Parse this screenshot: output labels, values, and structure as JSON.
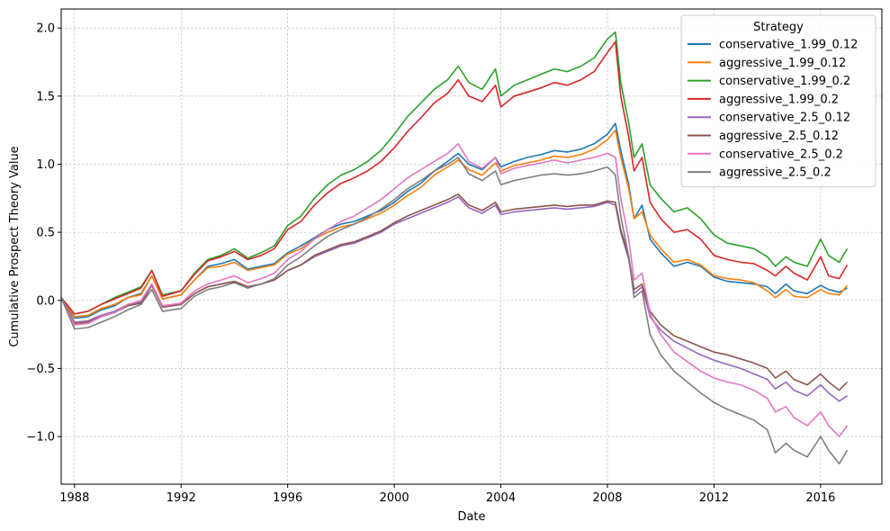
{
  "chart_data": {
    "type": "line",
    "xlabel": "Date",
    "ylabel": "Cumulative Prospect Theory Value",
    "xlim": [
      1987.5,
      2018.3
    ],
    "ylim": [
      -1.35,
      2.14
    ],
    "x_ticks": [
      1988,
      1992,
      1996,
      2000,
      2004,
      2008,
      2012,
      2016
    ],
    "y_ticks": [
      -1.0,
      -0.5,
      0.0,
      0.5,
      1.0,
      1.5,
      2.0
    ],
    "y_tick_labels": [
      "−1.0",
      "−0.5",
      "0.0",
      "0.5",
      "1.0",
      "1.5",
      "2.0"
    ],
    "grid": true,
    "legend": {
      "title": "Strategy",
      "placement": "top-right"
    },
    "x": [
      1987.5,
      1988.0,
      1988.5,
      1989.0,
      1989.5,
      1990.0,
      1990.5,
      1990.9,
      1991.3,
      1992.0,
      1992.5,
      1993.0,
      1993.5,
      1994.0,
      1994.5,
      1995.0,
      1995.5,
      1996.0,
      1996.5,
      1997.0,
      1997.5,
      1998.0,
      1998.5,
      1999.0,
      1999.5,
      2000.0,
      2000.5,
      2001.0,
      2001.5,
      2002.0,
      2002.4,
      2002.8,
      2003.3,
      2003.8,
      2004.0,
      2004.5,
      2005.0,
      2005.5,
      2006.0,
      2006.5,
      2007.0,
      2007.5,
      2008.0,
      2008.3,
      2008.5,
      2008.8,
      2009.0,
      2009.3,
      2009.6,
      2010.0,
      2010.5,
      2011.0,
      2011.5,
      2012.0,
      2012.5,
      2013.0,
      2013.5,
      2014.0,
      2014.3,
      2014.7,
      2015.0,
      2015.5,
      2016.0,
      2016.3,
      2016.7,
      2017.0
    ],
    "series": [
      {
        "name": "conservative_1.99_0.12",
        "color": "#1f77b4",
        "values": [
          0.02,
          -0.13,
          -0.12,
          -0.07,
          -0.04,
          0.02,
          0.05,
          0.18,
          0.01,
          0.04,
          0.15,
          0.25,
          0.27,
          0.3,
          0.23,
          0.25,
          0.27,
          0.35,
          0.4,
          0.46,
          0.52,
          0.56,
          0.58,
          0.62,
          0.66,
          0.72,
          0.8,
          0.86,
          0.95,
          1.02,
          1.08,
          1.0,
          0.96,
          1.05,
          0.98,
          1.02,
          1.05,
          1.07,
          1.1,
          1.09,
          1.11,
          1.15,
          1.22,
          1.3,
          1.1,
          0.85,
          0.6,
          0.7,
          0.45,
          0.35,
          0.25,
          0.28,
          0.25,
          0.17,
          0.14,
          0.13,
          0.12,
          0.1,
          0.05,
          0.12,
          0.07,
          0.05,
          0.11,
          0.08,
          0.06,
          0.09
        ]
      },
      {
        "name": "aggressive_1.99_0.12",
        "color": "#ff7f0e",
        "values": [
          0.02,
          -0.12,
          -0.11,
          -0.06,
          -0.03,
          0.02,
          0.04,
          0.18,
          0.01,
          0.04,
          0.15,
          0.24,
          0.25,
          0.28,
          0.22,
          0.24,
          0.26,
          0.34,
          0.38,
          0.45,
          0.5,
          0.54,
          0.56,
          0.6,
          0.64,
          0.7,
          0.77,
          0.83,
          0.92,
          0.98,
          1.03,
          0.96,
          0.92,
          1.01,
          0.95,
          0.99,
          1.01,
          1.03,
          1.06,
          1.05,
          1.07,
          1.11,
          1.18,
          1.25,
          1.05,
          0.82,
          0.6,
          0.65,
          0.48,
          0.38,
          0.28,
          0.3,
          0.26,
          0.18,
          0.16,
          0.15,
          0.13,
          0.07,
          0.02,
          0.08,
          0.03,
          0.02,
          0.08,
          0.05,
          0.04,
          0.11
        ]
      },
      {
        "name": "conservative_1.99_0.2",
        "color": "#2ca02c",
        "values": [
          0.02,
          -0.1,
          -0.08,
          -0.03,
          0.02,
          0.06,
          0.1,
          0.22,
          0.04,
          0.07,
          0.2,
          0.3,
          0.33,
          0.38,
          0.31,
          0.35,
          0.4,
          0.55,
          0.62,
          0.75,
          0.85,
          0.92,
          0.96,
          1.02,
          1.1,
          1.22,
          1.35,
          1.45,
          1.55,
          1.62,
          1.72,
          1.6,
          1.55,
          1.7,
          1.5,
          1.58,
          1.62,
          1.66,
          1.7,
          1.68,
          1.72,
          1.78,
          1.92,
          1.97,
          1.6,
          1.3,
          1.05,
          1.15,
          0.85,
          0.75,
          0.65,
          0.68,
          0.6,
          0.48,
          0.42,
          0.4,
          0.38,
          0.32,
          0.25,
          0.32,
          0.28,
          0.25,
          0.45,
          0.33,
          0.28,
          0.38
        ]
      },
      {
        "name": "aggressive_1.99_0.2",
        "color": "#d62728",
        "values": [
          0.02,
          -0.1,
          -0.08,
          -0.03,
          0.01,
          0.05,
          0.09,
          0.22,
          0.03,
          0.07,
          0.19,
          0.29,
          0.32,
          0.36,
          0.3,
          0.33,
          0.38,
          0.52,
          0.58,
          0.7,
          0.79,
          0.86,
          0.9,
          0.95,
          1.02,
          1.12,
          1.24,
          1.34,
          1.45,
          1.52,
          1.62,
          1.5,
          1.46,
          1.58,
          1.42,
          1.5,
          1.53,
          1.56,
          1.6,
          1.58,
          1.62,
          1.68,
          1.82,
          1.9,
          1.5,
          1.2,
          0.95,
          1.05,
          0.72,
          0.6,
          0.5,
          0.52,
          0.45,
          0.33,
          0.3,
          0.28,
          0.27,
          0.22,
          0.18,
          0.25,
          0.2,
          0.15,
          0.32,
          0.18,
          0.16,
          0.26
        ]
      },
      {
        "name": "conservative_2.5_0.12",
        "color": "#9467bd",
        "values": [
          0.02,
          -0.16,
          -0.15,
          -0.11,
          -0.08,
          -0.03,
          -0.01,
          0.12,
          -0.04,
          -0.03,
          0.05,
          0.1,
          0.12,
          0.14,
          0.1,
          0.12,
          0.15,
          0.22,
          0.26,
          0.32,
          0.36,
          0.4,
          0.42,
          0.46,
          0.5,
          0.56,
          0.6,
          0.64,
          0.68,
          0.72,
          0.76,
          0.68,
          0.64,
          0.7,
          0.63,
          0.65,
          0.66,
          0.67,
          0.68,
          0.67,
          0.68,
          0.69,
          0.72,
          0.7,
          0.5,
          0.3,
          0.05,
          0.1,
          -0.12,
          -0.22,
          -0.3,
          -0.35,
          -0.4,
          -0.44,
          -0.47,
          -0.5,
          -0.54,
          -0.58,
          -0.65,
          -0.6,
          -0.66,
          -0.7,
          -0.62,
          -0.68,
          -0.74,
          -0.7
        ]
      },
      {
        "name": "aggressive_2.5_0.12",
        "color": "#8c564b",
        "values": [
          0.02,
          -0.17,
          -0.16,
          -0.12,
          -0.09,
          -0.04,
          -0.02,
          0.11,
          -0.05,
          -0.03,
          0.05,
          0.1,
          0.12,
          0.14,
          0.1,
          0.12,
          0.15,
          0.22,
          0.26,
          0.33,
          0.37,
          0.41,
          0.43,
          0.47,
          0.51,
          0.57,
          0.62,
          0.66,
          0.7,
          0.74,
          0.78,
          0.7,
          0.66,
          0.72,
          0.65,
          0.67,
          0.68,
          0.69,
          0.7,
          0.69,
          0.7,
          0.7,
          0.73,
          0.72,
          0.52,
          0.32,
          0.08,
          0.12,
          -0.08,
          -0.18,
          -0.26,
          -0.3,
          -0.34,
          -0.38,
          -0.4,
          -0.43,
          -0.46,
          -0.5,
          -0.57,
          -0.52,
          -0.58,
          -0.62,
          -0.54,
          -0.6,
          -0.66,
          -0.6
        ]
      },
      {
        "name": "conservative_2.5_0.2",
        "color": "#e377c2",
        "values": [
          0.02,
          -0.18,
          -0.17,
          -0.12,
          -0.09,
          -0.03,
          0.0,
          0.12,
          -0.04,
          -0.02,
          0.07,
          0.12,
          0.15,
          0.18,
          0.13,
          0.16,
          0.2,
          0.3,
          0.36,
          0.45,
          0.52,
          0.58,
          0.62,
          0.68,
          0.74,
          0.82,
          0.9,
          0.96,
          1.02,
          1.08,
          1.15,
          1.02,
          0.97,
          1.05,
          0.93,
          0.97,
          0.99,
          1.01,
          1.03,
          1.01,
          1.03,
          1.05,
          1.08,
          1.05,
          0.75,
          0.45,
          0.15,
          0.2,
          -0.1,
          -0.25,
          -0.38,
          -0.45,
          -0.52,
          -0.57,
          -0.6,
          -0.62,
          -0.66,
          -0.72,
          -0.82,
          -0.78,
          -0.86,
          -0.92,
          -0.82,
          -0.92,
          -1.0,
          -0.92
        ]
      },
      {
        "name": "aggressive_2.5_0.2",
        "color": "#7f7f7f",
        "values": [
          0.02,
          -0.21,
          -0.2,
          -0.16,
          -0.12,
          -0.07,
          -0.03,
          0.08,
          -0.08,
          -0.06,
          0.03,
          0.08,
          0.1,
          0.13,
          0.09,
          0.12,
          0.16,
          0.26,
          0.32,
          0.4,
          0.47,
          0.52,
          0.56,
          0.61,
          0.67,
          0.74,
          0.82,
          0.88,
          0.95,
          1.0,
          1.05,
          0.93,
          0.88,
          0.95,
          0.85,
          0.88,
          0.9,
          0.92,
          0.93,
          0.92,
          0.93,
          0.95,
          0.98,
          0.92,
          0.62,
          0.32,
          0.02,
          0.07,
          -0.25,
          -0.4,
          -0.52,
          -0.6,
          -0.68,
          -0.75,
          -0.8,
          -0.84,
          -0.88,
          -0.95,
          -1.12,
          -1.05,
          -1.1,
          -1.15,
          -1.0,
          -1.1,
          -1.2,
          -1.1
        ]
      }
    ]
  }
}
